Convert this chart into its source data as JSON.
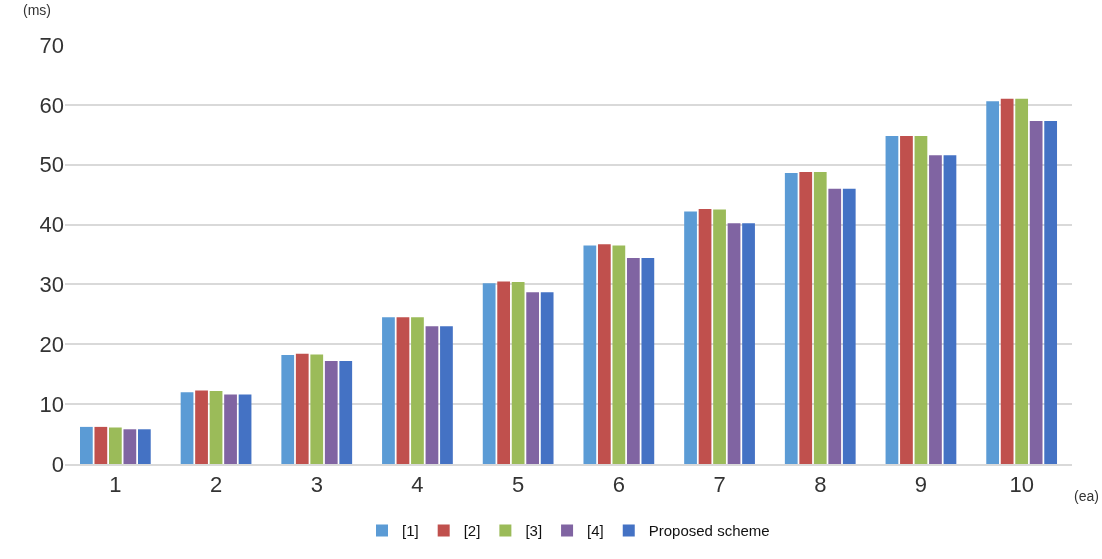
{
  "chart_data": {
    "type": "bar",
    "ylabel": "(ms)",
    "xlabel": "(ea)",
    "categories": [
      "1",
      "2",
      "3",
      "4",
      "5",
      "6",
      "7",
      "8",
      "9",
      "10"
    ],
    "series": [
      {
        "name": "[1]",
        "color": "#5b9bd5",
        "values": [
          6.2,
          12.0,
          18.2,
          24.5,
          30.2,
          36.5,
          42.2,
          48.6,
          54.8,
          60.6
        ]
      },
      {
        "name": "[2]",
        "color": "#c0504d",
        "values": [
          6.2,
          12.3,
          18.4,
          24.5,
          30.5,
          36.7,
          42.6,
          48.8,
          54.8,
          61.0
        ]
      },
      {
        "name": "[3]",
        "color": "#9bbb59",
        "values": [
          6.1,
          12.2,
          18.3,
          24.5,
          30.4,
          36.5,
          42.5,
          48.8,
          54.8,
          61.0
        ]
      },
      {
        "name": "[4]",
        "color": "#8064a2",
        "values": [
          5.8,
          11.6,
          17.2,
          23.0,
          28.7,
          34.4,
          40.2,
          46.0,
          51.6,
          57.3
        ]
      },
      {
        "name": "Proposed scheme",
        "color": "#4472c4",
        "values": [
          5.8,
          11.6,
          17.2,
          23.0,
          28.7,
          34.4,
          40.2,
          46.0,
          51.6,
          57.3
        ]
      }
    ],
    "ylim": [
      0,
      70
    ],
    "yticks": [
      0,
      10,
      20,
      30,
      40,
      50,
      60,
      70
    ],
    "grid": "y",
    "legend": "bottom"
  }
}
